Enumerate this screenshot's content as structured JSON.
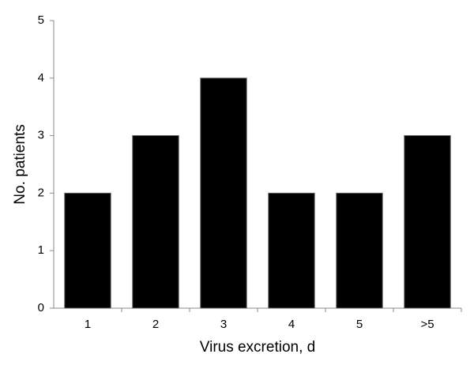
{
  "chart_data": {
    "type": "bar",
    "x_label": "Virus excretion, d",
    "y_label": "No. patients",
    "categories": [
      "1",
      "2",
      "3",
      "4",
      "5",
      ">5"
    ],
    "values": [
      2,
      3,
      4,
      2,
      2,
      3
    ],
    "color": "#000000",
    "ylim": [
      0,
      5
    ],
    "yticks": [
      0,
      1,
      2,
      3,
      4,
      5
    ],
    "grid": false
  }
}
